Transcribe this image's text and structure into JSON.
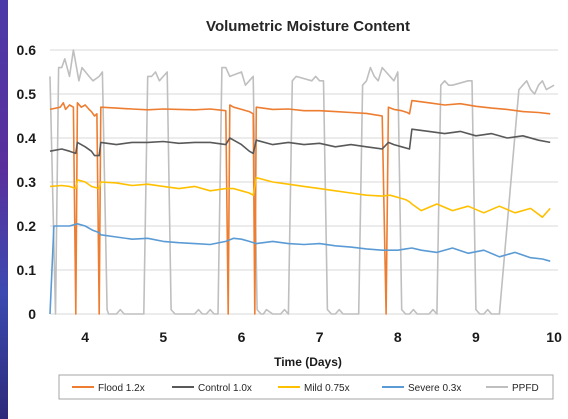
{
  "chart_data": {
    "type": "line",
    "title": "Volumetric Moisture Content",
    "xlabel": "Time (Days)",
    "ylabel": "",
    "xlim": [
      3.55,
      10.05
    ],
    "ylim": [
      0,
      0.6
    ],
    "x_ticks": [
      4,
      5,
      6,
      7,
      8,
      9,
      10
    ],
    "y_ticks": [
      "0",
      "0.1",
      "0.2",
      "0.3",
      "0.4",
      "0.5",
      "0.6"
    ],
    "grid": "horizontal",
    "legend_position": "bottom",
    "series": [
      {
        "name": "Flood 1.2x",
        "color": "#ED7D31",
        "x": [
          3.55,
          3.68,
          3.72,
          3.75,
          3.8,
          3.85,
          3.88,
          3.9,
          3.95,
          4.0,
          4.05,
          4.08,
          4.12,
          4.15,
          4.18,
          4.2,
          4.4,
          4.6,
          4.8,
          5.0,
          5.2,
          5.4,
          5.6,
          5.8,
          5.83,
          5.85,
          5.9,
          6.0,
          6.1,
          6.15,
          6.17,
          6.19,
          6.4,
          6.6,
          6.8,
          7.0,
          7.2,
          7.4,
          7.6,
          7.8,
          7.85,
          7.88,
          7.95,
          8.05,
          8.12,
          8.15,
          8.18,
          8.4,
          8.6,
          8.8,
          9.0,
          9.2,
          9.4,
          9.6,
          9.8,
          9.95
        ],
        "y": [
          0.465,
          0.47,
          0.48,
          0.465,
          0.475,
          0.47,
          0.0,
          0.48,
          0.47,
          0.475,
          0.465,
          0.46,
          0.45,
          0.455,
          0.0,
          0.47,
          0.468,
          0.466,
          0.464,
          0.466,
          0.465,
          0.464,
          0.466,
          0.462,
          0.0,
          0.475,
          0.47,
          0.465,
          0.46,
          0.455,
          0.0,
          0.47,
          0.465,
          0.466,
          0.462,
          0.462,
          0.46,
          0.458,
          0.456,
          0.45,
          0.0,
          0.47,
          0.465,
          0.462,
          0.458,
          0.455,
          0.485,
          0.48,
          0.475,
          0.478,
          0.472,
          0.468,
          0.465,
          0.46,
          0.458,
          0.455
        ]
      },
      {
        "name": "Control 1.0x",
        "color": "#595959",
        "x": [
          3.55,
          3.7,
          3.8,
          3.88,
          3.9,
          4.0,
          4.08,
          4.12,
          4.18,
          4.2,
          4.4,
          4.6,
          4.8,
          5.0,
          5.2,
          5.4,
          5.6,
          5.8,
          5.85,
          5.9,
          6.0,
          6.1,
          6.15,
          6.19,
          6.4,
          6.6,
          6.8,
          7.0,
          7.2,
          7.4,
          7.6,
          7.8,
          7.88,
          7.95,
          8.05,
          8.15,
          8.18,
          8.4,
          8.6,
          8.8,
          9.0,
          9.2,
          9.4,
          9.6,
          9.8,
          9.95
        ],
        "y": [
          0.37,
          0.375,
          0.37,
          0.365,
          0.39,
          0.38,
          0.37,
          0.36,
          0.36,
          0.39,
          0.385,
          0.39,
          0.39,
          0.392,
          0.388,
          0.39,
          0.39,
          0.385,
          0.4,
          0.395,
          0.385,
          0.37,
          0.365,
          0.395,
          0.385,
          0.39,
          0.385,
          0.388,
          0.38,
          0.385,
          0.38,
          0.375,
          0.39,
          0.385,
          0.38,
          0.375,
          0.42,
          0.415,
          0.41,
          0.415,
          0.405,
          0.41,
          0.4,
          0.405,
          0.395,
          0.39
        ]
      },
      {
        "name": "Mild 0.75x",
        "color": "#FFC000",
        "x": [
          3.55,
          3.7,
          3.8,
          3.88,
          3.9,
          4.0,
          4.08,
          4.18,
          4.2,
          4.4,
          4.6,
          4.8,
          5.0,
          5.2,
          5.4,
          5.6,
          5.8,
          5.9,
          6.0,
          6.1,
          6.15,
          6.19,
          6.4,
          6.6,
          6.8,
          7.0,
          7.2,
          7.4,
          7.6,
          7.8,
          7.9,
          8.0,
          8.1,
          8.15,
          8.18,
          8.3,
          8.5,
          8.7,
          8.9,
          9.1,
          9.3,
          9.5,
          9.7,
          9.85,
          9.95
        ],
        "y": [
          0.29,
          0.292,
          0.29,
          0.285,
          0.305,
          0.3,
          0.29,
          0.285,
          0.3,
          0.298,
          0.292,
          0.295,
          0.29,
          0.285,
          0.29,
          0.28,
          0.285,
          0.285,
          0.28,
          0.275,
          0.27,
          0.31,
          0.3,
          0.295,
          0.29,
          0.285,
          0.28,
          0.275,
          0.27,
          0.268,
          0.27,
          0.265,
          0.26,
          0.255,
          0.25,
          0.235,
          0.25,
          0.235,
          0.245,
          0.23,
          0.245,
          0.23,
          0.24,
          0.22,
          0.24
        ]
      },
      {
        "name": "Severe 0.3x",
        "color": "#5B9BD5",
        "x": [
          3.55,
          3.6,
          3.7,
          3.8,
          3.9,
          4.0,
          4.1,
          4.18,
          4.2,
          4.4,
          4.6,
          4.8,
          5.0,
          5.2,
          5.4,
          5.6,
          5.8,
          5.9,
          6.0,
          6.1,
          6.19,
          6.4,
          6.6,
          6.8,
          7.0,
          7.2,
          7.4,
          7.6,
          7.8,
          7.9,
          8.0,
          8.1,
          8.18,
          8.3,
          8.5,
          8.7,
          8.9,
          9.1,
          9.3,
          9.5,
          9.7,
          9.85,
          9.95
        ],
        "y": [
          0.0,
          0.2,
          0.2,
          0.2,
          0.205,
          0.2,
          0.19,
          0.185,
          0.18,
          0.175,
          0.17,
          0.172,
          0.165,
          0.162,
          0.16,
          0.158,
          0.165,
          0.172,
          0.17,
          0.165,
          0.16,
          0.165,
          0.16,
          0.158,
          0.16,
          0.155,
          0.152,
          0.148,
          0.145,
          0.145,
          0.145,
          0.148,
          0.15,
          0.145,
          0.14,
          0.15,
          0.138,
          0.145,
          0.13,
          0.14,
          0.128,
          0.125,
          0.12
        ]
      },
      {
        "name": "PPFD",
        "color": "#BFBFBF",
        "x": [
          3.55,
          3.62,
          3.66,
          3.7,
          3.74,
          3.8,
          3.85,
          3.92,
          3.96,
          4.05,
          4.1,
          4.18,
          4.22,
          4.28,
          4.3,
          4.4,
          4.45,
          4.5,
          4.75,
          4.8,
          4.85,
          4.9,
          4.95,
          5.0,
          5.05,
          5.1,
          5.15,
          5.4,
          5.45,
          5.5,
          5.55,
          5.6,
          5.65,
          5.7,
          5.75,
          5.8,
          5.85,
          6.0,
          6.05,
          6.1,
          6.15,
          6.2,
          6.25,
          6.28,
          6.32,
          6.4,
          6.45,
          6.5,
          6.55,
          6.6,
          6.65,
          6.7,
          6.9,
          6.95,
          7.0,
          7.05,
          7.1,
          7.15,
          7.2,
          7.25,
          7.3,
          7.5,
          7.55,
          7.6,
          7.65,
          7.7,
          7.75,
          7.8,
          7.85,
          7.95,
          8.0,
          8.05,
          8.1,
          8.15,
          8.2,
          8.25,
          8.3,
          8.4,
          8.45,
          8.5,
          8.55,
          8.6,
          8.65,
          8.7,
          8.9,
          8.95,
          9.0,
          9.05,
          9.1,
          9.15,
          9.2,
          9.25,
          9.3,
          9.55,
          9.6,
          9.65,
          9.7,
          9.75,
          9.8,
          9.85,
          9.9,
          10.0
        ],
        "y": [
          0.54,
          0.0,
          0.56,
          0.56,
          0.58,
          0.54,
          0.6,
          0.53,
          0.56,
          0.54,
          0.53,
          0.54,
          0.55,
          0.01,
          0.0,
          0.0,
          0.01,
          0.0,
          0.0,
          0.54,
          0.54,
          0.55,
          0.53,
          0.54,
          0.55,
          0.01,
          0.0,
          0.0,
          0.01,
          0.0,
          0.0,
          0.01,
          0.0,
          0.0,
          0.56,
          0.56,
          0.54,
          0.55,
          0.52,
          0.53,
          0.54,
          0.01,
          0.0,
          0.0,
          0.01,
          0.0,
          0.0,
          0.0,
          0.01,
          0.0,
          0.53,
          0.54,
          0.53,
          0.54,
          0.53,
          0.53,
          0.01,
          0.0,
          0.0,
          0.01,
          0.0,
          0.0,
          0.52,
          0.53,
          0.56,
          0.54,
          0.53,
          0.56,
          0.55,
          0.53,
          0.55,
          0.01,
          0.0,
          0.0,
          0.01,
          0.0,
          0.0,
          0.0,
          0.01,
          0.0,
          0.52,
          0.53,
          0.52,
          0.52,
          0.53,
          0.53,
          0.01,
          0.0,
          0.0,
          0.01,
          0.0,
          0.0,
          0.0,
          0.51,
          0.52,
          0.53,
          0.51,
          0.5,
          0.52,
          0.53,
          0.51,
          0.52
        ]
      }
    ]
  }
}
